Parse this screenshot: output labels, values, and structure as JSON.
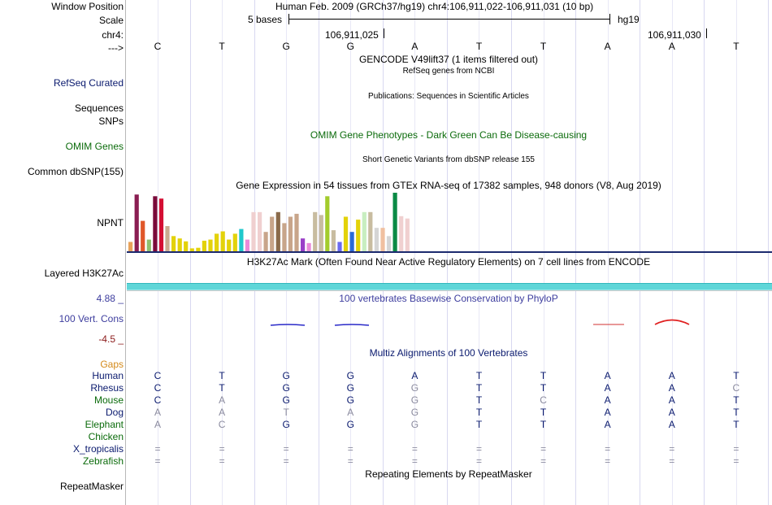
{
  "header": {
    "window_position_label": "Window Position",
    "window_position_text": "Human Feb. 2009 (GRCh37/hg19)   chr4:106,911,022-106,911,031 (10 bp)",
    "scale_label": "Scale",
    "scale_text": "5 bases",
    "scale_assembly": "hg19",
    "chrom_label": "chr4:",
    "coord_1": "106,911,025",
    "coord_2": "106,911,030",
    "strand_label": "--->",
    "bases": [
      "C",
      "T",
      "G",
      "G",
      "A",
      "T",
      "T",
      "A",
      "A",
      "T"
    ]
  },
  "tracks": {
    "gencode_title": "GENCODE V49lift37 (1 items filtered out)",
    "refseq_subtitle": "RefSeq genes from NCBI",
    "refseq_label": "RefSeq Curated",
    "publications_text": "Publications: Sequences in Scientific Articles",
    "sequences_label": "Sequences",
    "snps_label": "SNPs",
    "omim_title": "OMIM Gene Phenotypes - Dark Green Can Be Disease-causing",
    "omim_label": "OMIM Genes",
    "dbsnp_subtitle": "Short Genetic Variants from dbSNP release 155",
    "dbsnp_label": "Common dbSNP(155)",
    "gtex_title": "Gene Expression in 54 tissues from GTEx RNA-seq of 17382 samples, 948 donors (V8, Aug 2019)",
    "gtex_gene": "NPNT",
    "h3k27ac_title": "H3K27Ac Mark (Often Found Near Active Regulatory Elements) on 7 cell lines from ENCODE",
    "h3k27ac_label": "Layered H3K27Ac",
    "cons_max": "4.88 _",
    "cons_title": "100 vertebrates Basewise Conservation by PhyloP",
    "cons_label": "100 Vert. Cons",
    "cons_min": "-4.5 _",
    "multiz_title": "Multiz Alignments of 100 Vertebrates",
    "gaps_label": "Gaps",
    "repeat_title": "Repeating Elements by RepeatMasker",
    "repeat_label": "RepeatMasker"
  },
  "gtex_bars": [
    {
      "v": 0.16,
      "c": "#e8a25a"
    },
    {
      "v": 0.97,
      "c": "#8a1d52"
    },
    {
      "v": 0.52,
      "c": "#e0572a"
    },
    {
      "v": 0.2,
      "c": "#8fbf6f"
    },
    {
      "v": 0.94,
      "c": "#7a0a3a"
    },
    {
      "v": 0.9,
      "c": "#d40f33"
    },
    {
      "v": 0.43,
      "c": "#c9ab90"
    },
    {
      "v": 0.26,
      "c": "#e3d20a"
    },
    {
      "v": 0.22,
      "c": "#e3d20a"
    },
    {
      "v": 0.17,
      "c": "#e3d20a"
    },
    {
      "v": 0.05,
      "c": "#e3d20a"
    },
    {
      "v": 0.06,
      "c": "#e3d20a"
    },
    {
      "v": 0.18,
      "c": "#e3d20a"
    },
    {
      "v": 0.2,
      "c": "#e3d20a"
    },
    {
      "v": 0.3,
      "c": "#e3d20a"
    },
    {
      "v": 0.34,
      "c": "#e3d20a"
    },
    {
      "v": 0.2,
      "c": "#e3d20a"
    },
    {
      "v": 0.3,
      "c": "#e3d20a"
    },
    {
      "v": 0.38,
      "c": "#20c8cc"
    },
    {
      "v": 0.2,
      "c": "#e98ad8"
    },
    {
      "v": 0.67,
      "c": "#f0d0d0"
    },
    {
      "v": 0.67,
      "c": "#f0d0d0"
    },
    {
      "v": 0.33,
      "c": "#c8a58a"
    },
    {
      "v": 0.59,
      "c": "#c8a58a"
    },
    {
      "v": 0.67,
      "c": "#8a6a4a"
    },
    {
      "v": 0.48,
      "c": "#c8a58a"
    },
    {
      "v": 0.59,
      "c": "#c8a58a"
    },
    {
      "v": 0.64,
      "c": "#c8a58a"
    },
    {
      "v": 0.22,
      "c": "#9a3ec8"
    },
    {
      "v": 0.14,
      "c": "#e98ad8"
    },
    {
      "v": 0.67,
      "c": "#c8bca0"
    },
    {
      "v": 0.62,
      "c": "#c8bca0"
    },
    {
      "v": 0.94,
      "c": "#a3cc2c"
    },
    {
      "v": 0.36,
      "c": "#c8bca0"
    },
    {
      "v": 0.16,
      "c": "#6a6af0"
    },
    {
      "v": 0.59,
      "c": "#e3d20a"
    },
    {
      "v": 0.33,
      "c": "#2a6ad8"
    },
    {
      "v": 0.54,
      "c": "#e3d20a"
    },
    {
      "v": 0.67,
      "c": "#c8eec0"
    },
    {
      "v": 0.67,
      "c": "#c8bca0"
    },
    {
      "v": 0.4,
      "c": "#d5d5d5"
    },
    {
      "v": 0.4,
      "c": "#f0c0a0"
    },
    {
      "v": 0.26,
      "c": "#d5d5d5"
    },
    {
      "v": 1.0,
      "c": "#0a8a45"
    },
    {
      "v": 0.6,
      "c": "#f0d0d0"
    },
    {
      "v": 0.56,
      "c": "#f0d0d0"
    }
  ],
  "alignment": {
    "species": [
      {
        "name": "Human",
        "color": "#0a1a6e",
        "bases": [
          "C",
          "T",
          "G",
          "G",
          "A",
          "T",
          "T",
          "A",
          "A",
          "T"
        ],
        "grey": [
          0,
          0,
          0,
          0,
          0,
          0,
          0,
          0,
          0,
          0
        ]
      },
      {
        "name": "Rhesus",
        "color": "#0a1a6e",
        "bases": [
          "C",
          "T",
          "G",
          "G",
          "G",
          "T",
          "T",
          "A",
          "A",
          "C"
        ],
        "grey": [
          0,
          0,
          0,
          0,
          1,
          0,
          0,
          0,
          0,
          1
        ]
      },
      {
        "name": "Mouse",
        "color": "#0b6b0b",
        "bases": [
          "C",
          "A",
          "G",
          "G",
          "G",
          "T",
          "C",
          "A",
          "A",
          "T"
        ],
        "grey": [
          0,
          1,
          0,
          0,
          1,
          0,
          1,
          0,
          0,
          0
        ]
      },
      {
        "name": "Dog",
        "color": "#0a1a6e",
        "bases": [
          "A",
          "A",
          "T",
          "A",
          "G",
          "T",
          "T",
          "A",
          "A",
          "T"
        ],
        "grey": [
          1,
          1,
          1,
          1,
          1,
          0,
          0,
          0,
          0,
          0
        ]
      },
      {
        "name": "Elephant",
        "color": "#0b6b0b",
        "bases": [
          "A",
          "C",
          "G",
          "G",
          "G",
          "T",
          "T",
          "A",
          "A",
          "T"
        ],
        "grey": [
          1,
          1,
          0,
          0,
          1,
          0,
          0,
          0,
          0,
          0
        ]
      },
      {
        "name": "Chicken",
        "color": "#0b6b0b",
        "bases": [
          "",
          "",
          "",
          "",
          "",
          "",
          "",
          "",
          "",
          ""
        ],
        "grey": [
          0,
          0,
          0,
          0,
          0,
          0,
          0,
          0,
          0,
          0
        ]
      },
      {
        "name": "X_tropicalis",
        "color": "#0a1a6e",
        "bases": [
          "=",
          "=",
          "=",
          "=",
          "=",
          "=",
          "=",
          "=",
          "=",
          "="
        ],
        "grey": [
          1,
          1,
          1,
          1,
          1,
          1,
          1,
          1,
          1,
          1
        ]
      },
      {
        "name": "Zebrafish",
        "color": "#0b6b0b",
        "bases": [
          "=",
          "=",
          "=",
          "=",
          "=",
          "=",
          "=",
          "=",
          "=",
          "="
        ],
        "grey": [
          1,
          1,
          1,
          1,
          1,
          1,
          1,
          1,
          1,
          1
        ]
      }
    ]
  }
}
